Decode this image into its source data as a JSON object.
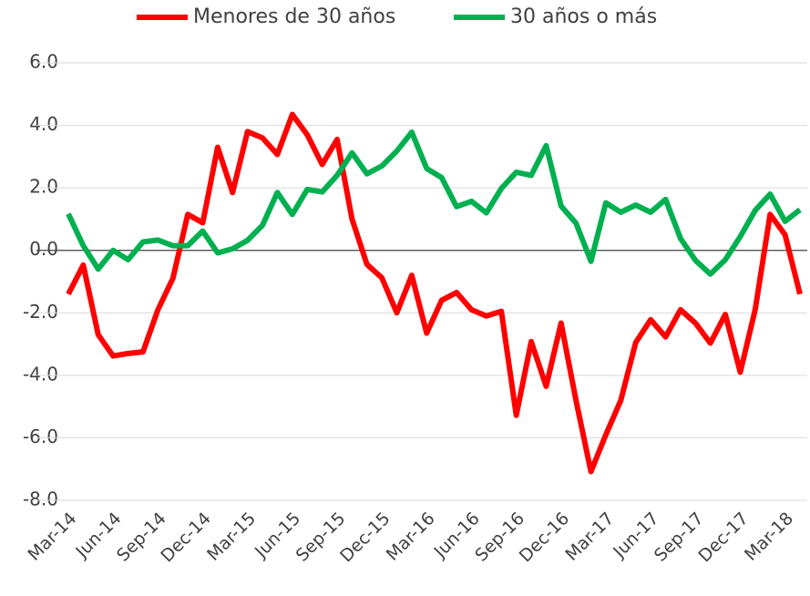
{
  "chart_data": {
    "type": "line",
    "categories": [
      "Mar-14",
      null,
      null,
      "Jun-14",
      null,
      null,
      "Sep-14",
      null,
      null,
      "Dec-14",
      null,
      null,
      "Mar-15",
      null,
      null,
      "Jun-15",
      null,
      null,
      "Sep-15",
      null,
      null,
      "Dec-15",
      null,
      null,
      "Mar-16",
      null,
      null,
      "Jun-16",
      null,
      null,
      "Sep-16",
      null,
      null,
      "Dec-16",
      null,
      null,
      "Mar-17",
      null,
      null,
      "Jun-17",
      null,
      null,
      "Sep-17",
      null,
      null,
      "Dec-17",
      null,
      null,
      "Mar-18",
      null
    ],
    "series": [
      {
        "name": "Menores de 30 años",
        "color": "#ff0000",
        "values": [
          -1.4,
          -0.47,
          -2.7,
          -3.38,
          -3.3,
          -3.25,
          -1.9,
          -0.9,
          1.15,
          0.88,
          3.3,
          1.85,
          3.8,
          3.6,
          3.07,
          4.35,
          3.7,
          2.75,
          3.55,
          1.0,
          -0.45,
          -0.88,
          -2.0,
          -0.8,
          -2.65,
          -1.6,
          -1.35,
          -1.9,
          -2.1,
          -1.95,
          -5.28,
          -2.92,
          -4.35,
          -2.33,
          -4.8,
          -7.08,
          -5.9,
          -4.8,
          -2.95,
          -2.22,
          -2.77,
          -1.9,
          -2.33,
          -2.97,
          -2.05,
          -3.9,
          -1.9,
          1.15,
          0.5,
          -1.4
        ]
      },
      {
        "name": "30 años o más",
        "color": "#00b050",
        "values": [
          1.17,
          0.15,
          -0.6,
          0.0,
          -0.3,
          0.27,
          0.33,
          0.15,
          0.15,
          0.62,
          -0.08,
          0.05,
          0.32,
          0.8,
          1.85,
          1.15,
          1.95,
          1.87,
          2.4,
          3.12,
          2.45,
          2.7,
          3.18,
          3.78,
          2.62,
          2.33,
          1.4,
          1.57,
          1.2,
          1.98,
          2.5,
          2.4,
          3.35,
          1.42,
          0.87,
          -0.35,
          1.52,
          1.22,
          1.45,
          1.22,
          1.63,
          0.38,
          -0.32,
          -0.76,
          -0.3,
          0.44,
          1.28,
          1.8,
          0.93,
          1.3
        ]
      }
    ],
    "ylim": [
      -8,
      6
    ],
    "yticks": [
      {
        "value": -8,
        "label": "-8.0"
      },
      {
        "value": -6,
        "label": "-6.0"
      },
      {
        "value": -4,
        "label": "-4.0"
      },
      {
        "value": -2,
        "label": "-2.0"
      },
      {
        "value": 0,
        "label": "0.0"
      },
      {
        "value": 2,
        "label": "2.0"
      },
      {
        "value": 4,
        "label": "4.0"
      },
      {
        "value": 6,
        "label": "6.0"
      }
    ],
    "grid": true,
    "legend": "top"
  }
}
